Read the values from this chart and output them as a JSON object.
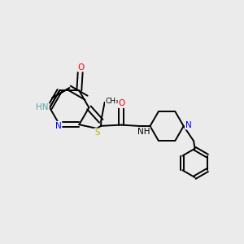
{
  "bg_color": "#ebebeb",
  "bond_color": "#000000",
  "atom_colors": {
    "NH_pyr": "#5ba3a3",
    "N_pyr": "#0000ff",
    "N_blue": "#0000ff",
    "S": "#b8b800",
    "O": "#ff0000",
    "NH_amide": "#000000"
  },
  "figsize": [
    3.0,
    3.0
  ],
  "dpi": 100,
  "xlim": [
    0,
    10
  ],
  "ylim": [
    0,
    10
  ]
}
